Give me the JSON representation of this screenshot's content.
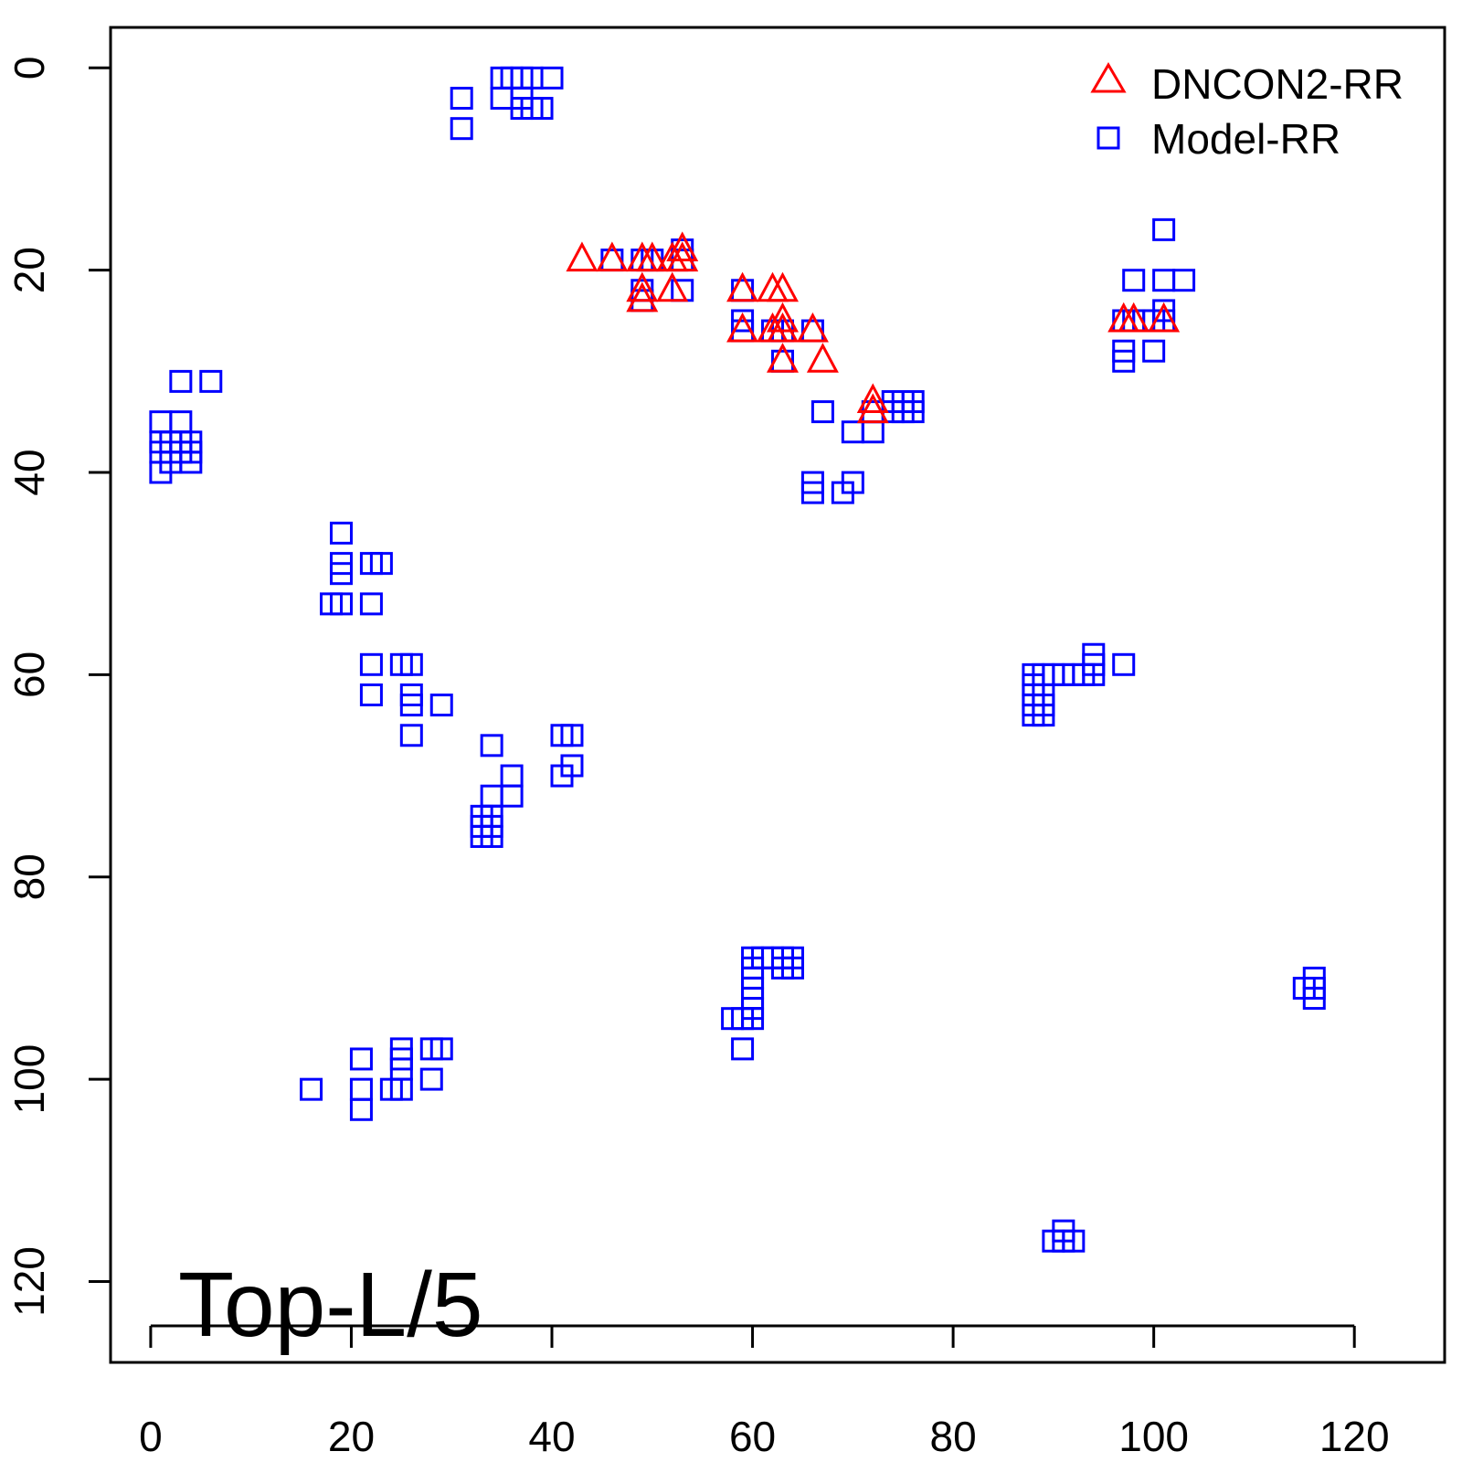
{
  "chart_data": {
    "type": "scatter",
    "title": "",
    "xlabel": "",
    "ylabel": "",
    "xlim": [
      -4,
      129
    ],
    "ylim": [
      -4,
      128
    ],
    "y_reversed": true,
    "x_ticks": [
      0,
      20,
      40,
      60,
      80,
      100,
      120
    ],
    "y_ticks": [
      0,
      20,
      40,
      60,
      80,
      100,
      120
    ],
    "x_tick_labels": [
      "0",
      "20",
      "40",
      "60",
      "80",
      "100",
      "120"
    ],
    "y_tick_labels": [
      "0",
      "20",
      "40",
      "60",
      "80",
      "100",
      "120"
    ],
    "grid": false,
    "legend_position": "top-right",
    "annotation": "Top-L/5",
    "series": [
      {
        "name": "DNCON2-RR",
        "marker": "triangle",
        "color": "#ff0000",
        "points": [
          [
            43,
            19
          ],
          [
            46,
            19
          ],
          [
            49,
            19
          ],
          [
            50,
            19
          ],
          [
            52,
            19
          ],
          [
            53,
            18
          ],
          [
            53,
            19
          ],
          [
            49,
            22
          ],
          [
            52,
            22
          ],
          [
            49,
            23
          ],
          [
            59,
            22
          ],
          [
            62,
            22
          ],
          [
            63,
            22
          ],
          [
            59,
            26
          ],
          [
            62,
            26
          ],
          [
            63,
            25
          ],
          [
            63,
            26
          ],
          [
            66,
            26
          ],
          [
            63,
            29
          ],
          [
            67,
            29
          ],
          [
            72,
            33
          ],
          [
            72,
            34
          ],
          [
            97,
            25
          ],
          [
            98,
            25
          ],
          [
            101,
            25
          ]
        ]
      },
      {
        "name": "Model-RR",
        "marker": "square",
        "color": "#0000ff",
        "points": [
          [
            35,
            1
          ],
          [
            36,
            1
          ],
          [
            37,
            1
          ],
          [
            38,
            1
          ],
          [
            40,
            1
          ],
          [
            35,
            3
          ],
          [
            37,
            3
          ],
          [
            31,
            3
          ],
          [
            37,
            4
          ],
          [
            38,
            4
          ],
          [
            39,
            4
          ],
          [
            31,
            6
          ],
          [
            46,
            19
          ],
          [
            49,
            19
          ],
          [
            50,
            19
          ],
          [
            53,
            18
          ],
          [
            53,
            19
          ],
          [
            49,
            22
          ],
          [
            53,
            22
          ],
          [
            49,
            23
          ],
          [
            59,
            22
          ],
          [
            59,
            25
          ],
          [
            59,
            26
          ],
          [
            62,
            26
          ],
          [
            63,
            26
          ],
          [
            66,
            26
          ],
          [
            63,
            29
          ],
          [
            67,
            34
          ],
          [
            72,
            34
          ],
          [
            74,
            33
          ],
          [
            75,
            33
          ],
          [
            76,
            33
          ],
          [
            74,
            34
          ],
          [
            75,
            34
          ],
          [
            76,
            34
          ],
          [
            70,
            36
          ],
          [
            72,
            36
          ],
          [
            66,
            41
          ],
          [
            66,
            42
          ],
          [
            69,
            42
          ],
          [
            70,
            41
          ],
          [
            101,
            16
          ],
          [
            98,
            21
          ],
          [
            101,
            21
          ],
          [
            103,
            21
          ],
          [
            97,
            25
          ],
          [
            98,
            25
          ],
          [
            99,
            25
          ],
          [
            100,
            25
          ],
          [
            101,
            24
          ],
          [
            101,
            25
          ],
          [
            97,
            28
          ],
          [
            97,
            29
          ],
          [
            100,
            28
          ],
          [
            3,
            31
          ],
          [
            6,
            31
          ],
          [
            1,
            35
          ],
          [
            3,
            35
          ],
          [
            1,
            37
          ],
          [
            2,
            37
          ],
          [
            3,
            37
          ],
          [
            4,
            37
          ],
          [
            1,
            38
          ],
          [
            3,
            38
          ],
          [
            4,
            38
          ],
          [
            2,
            39
          ],
          [
            4,
            39
          ],
          [
            1,
            40
          ],
          [
            19,
            46
          ],
          [
            19,
            49
          ],
          [
            19,
            50
          ],
          [
            22,
            49
          ],
          [
            23,
            49
          ],
          [
            18,
            53
          ],
          [
            19,
            53
          ],
          [
            22,
            53
          ],
          [
            22,
            59
          ],
          [
            25,
            59
          ],
          [
            26,
            59
          ],
          [
            22,
            62
          ],
          [
            26,
            62
          ],
          [
            26,
            63
          ],
          [
            29,
            63
          ],
          [
            26,
            66
          ],
          [
            34,
            67
          ],
          [
            41,
            66
          ],
          [
            42,
            66
          ],
          [
            36,
            70
          ],
          [
            41,
            70
          ],
          [
            42,
            69
          ],
          [
            34,
            72
          ],
          [
            36,
            72
          ],
          [
            33,
            74
          ],
          [
            34,
            74
          ],
          [
            33,
            75
          ],
          [
            34,
            75
          ],
          [
            33,
            76
          ],
          [
            34,
            76
          ],
          [
            88,
            60
          ],
          [
            89,
            60
          ],
          [
            90,
            60
          ],
          [
            91,
            60
          ],
          [
            92,
            60
          ],
          [
            93,
            60
          ],
          [
            94,
            60
          ],
          [
            94,
            58
          ],
          [
            94,
            59
          ],
          [
            97,
            59
          ],
          [
            88,
            61
          ],
          [
            88,
            62
          ],
          [
            89,
            62
          ],
          [
            88,
            63
          ],
          [
            89,
            63
          ],
          [
            88,
            64
          ],
          [
            89,
            64
          ],
          [
            60,
            88
          ],
          [
            61,
            88
          ],
          [
            62,
            88
          ],
          [
            63,
            88
          ],
          [
            64,
            88
          ],
          [
            60,
            89
          ],
          [
            63,
            89
          ],
          [
            64,
            89
          ],
          [
            60,
            90
          ],
          [
            60,
            91
          ],
          [
            60,
            92
          ],
          [
            60,
            93
          ],
          [
            58,
            94
          ],
          [
            59,
            94
          ],
          [
            60,
            94
          ],
          [
            59,
            97
          ],
          [
            21,
            98
          ],
          [
            25,
            97
          ],
          [
            25,
            98
          ],
          [
            25,
            99
          ],
          [
            28,
            97
          ],
          [
            29,
            97
          ],
          [
            28,
            100
          ],
          [
            16,
            101
          ],
          [
            21,
            101
          ],
          [
            24,
            101
          ],
          [
            25,
            101
          ],
          [
            21,
            103
          ],
          [
            116,
            90
          ],
          [
            115,
            91
          ],
          [
            116,
            91
          ],
          [
            116,
            92
          ],
          [
            91,
            115
          ],
          [
            90,
            116
          ],
          [
            91,
            116
          ],
          [
            92,
            116
          ]
        ]
      }
    ]
  }
}
